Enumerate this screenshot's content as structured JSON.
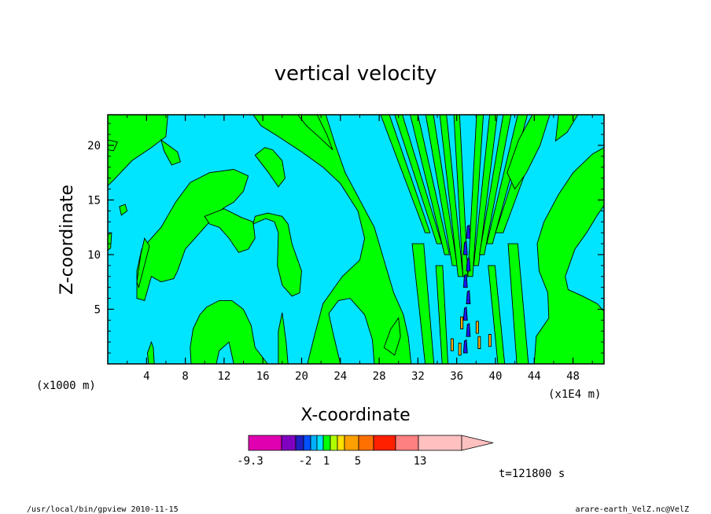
{
  "chart_data": {
    "type": "heatmap",
    "title": "vertical velocity",
    "xlabel": "X-coordinate",
    "ylabel": "Z-coordinate",
    "x_scale_note": "(x1000 m)",
    "x_units_note": "(x1E4 m)",
    "xlim": [
      0,
      51.2
    ],
    "ylim": [
      0,
      22.8
    ],
    "x_ticks": [
      4,
      8,
      12,
      16,
      20,
      24,
      28,
      32,
      36,
      40,
      44,
      48
    ],
    "y_ticks": [
      5,
      10,
      15,
      20
    ],
    "colorbar": {
      "levels": [
        -9.3,
        -2,
        1,
        5,
        13
      ],
      "labels": [
        "-9.3",
        "-2",
        "1",
        "5",
        "13"
      ],
      "colors": [
        "#e000b0",
        "#8000c0",
        "#2020c0",
        "#0050ff",
        "#00b0ff",
        "#00e0ff",
        "#00ff00",
        "#b0ff00",
        "#ffe000",
        "#ffa000",
        "#ff7000",
        "#ff2000",
        "#ff8080",
        "#ffc0c0"
      ]
    },
    "field_colors": {
      "negative": "#00e5ff",
      "positive": "#00ff00",
      "strong_negative": "#1a1aff",
      "strong_positive": "#ffb000"
    },
    "time_label": "t=121800 s"
  },
  "footer": {
    "left": "/usr/local/bin/gpview  2010-11-15",
    "right": "arare-earth_VelZ.nc@VelZ"
  }
}
